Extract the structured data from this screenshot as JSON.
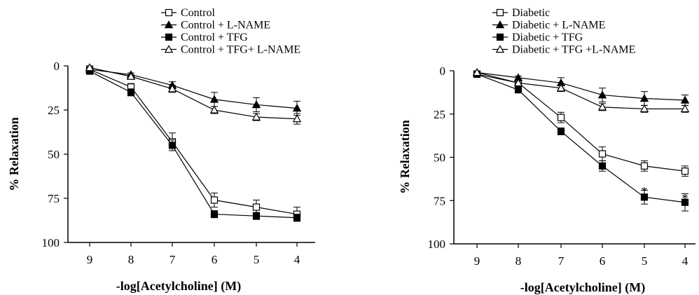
{
  "chart_data": [
    {
      "type": "line",
      "title": "",
      "xlabel": "-log[Acetylcholine] (M)",
      "ylabel": "% Relaxation",
      "x": [
        9,
        8,
        7,
        6,
        5,
        4
      ],
      "xticks": [
        "9",
        "8",
        "7",
        "6",
        "5",
        "4"
      ],
      "yticks": [
        "0",
        "25",
        "50",
        "75",
        "100"
      ],
      "ylim": [
        0,
        100
      ],
      "y_inverted": true,
      "grid": false,
      "legend_position": "top",
      "series": [
        {
          "name": "Control",
          "marker": "open-square",
          "values": [
            2,
            12,
            43,
            76,
            80,
            84
          ],
          "errors": [
            1,
            2,
            5,
            4,
            4,
            4
          ]
        },
        {
          "name": "Control + L-NAME",
          "marker": "filled-triangle",
          "values": [
            2,
            5,
            11,
            19,
            22,
            24
          ],
          "errors": [
            1,
            1,
            2,
            4,
            4,
            4
          ]
        },
        {
          "name": "Control + TFG",
          "marker": "filled-square",
          "values": [
            3,
            15,
            45,
            84,
            85,
            86
          ],
          "errors": [
            1,
            2,
            3,
            2,
            2,
            2
          ]
        },
        {
          "name": "Control + TFG+ L-NAME",
          "marker": "open-triangle",
          "values": [
            1,
            6,
            13,
            25,
            29,
            30
          ],
          "errors": [
            1,
            1,
            2,
            2,
            2,
            3
          ]
        }
      ],
      "annotations": []
    },
    {
      "type": "line",
      "title": "",
      "xlabel": "-log[Acetylcholine] (M)",
      "ylabel": "% Relaxation",
      "x": [
        9,
        8,
        7,
        6,
        5,
        4
      ],
      "xticks": [
        "9",
        "8",
        "7",
        "6",
        "5",
        "4"
      ],
      "yticks": [
        "0",
        "25",
        "50",
        "75",
        "100"
      ],
      "ylim": [
        0,
        100
      ],
      "y_inverted": true,
      "grid": false,
      "legend_position": "top",
      "series": [
        {
          "name": "Diabetic",
          "marker": "open-square",
          "values": [
            2,
            7,
            27,
            48,
            55,
            58
          ],
          "errors": [
            1,
            1,
            3,
            4,
            3,
            3
          ]
        },
        {
          "name": "Diabetic + L-NAME",
          "marker": "filled-triangle",
          "values": [
            1,
            4,
            7,
            14,
            16,
            17
          ],
          "errors": [
            1,
            1,
            3,
            4,
            4,
            3
          ]
        },
        {
          "name": "Diabetic + TFG",
          "marker": "filled-square",
          "values": [
            2,
            11,
            35,
            55,
            73,
            76
          ],
          "errors": [
            1,
            1,
            2,
            3,
            4,
            5
          ]
        },
        {
          "name": "Diabetic + TFG +L-NAME",
          "marker": "open-triangle",
          "values": [
            1,
            7,
            10,
            21,
            22,
            22
          ],
          "errors": [
            1,
            1,
            2,
            2,
            2,
            2
          ]
        }
      ],
      "annotations": [
        {
          "text": "*",
          "series": 2,
          "x": 5
        },
        {
          "text": "*",
          "series": 2,
          "x": 4
        }
      ]
    }
  ]
}
